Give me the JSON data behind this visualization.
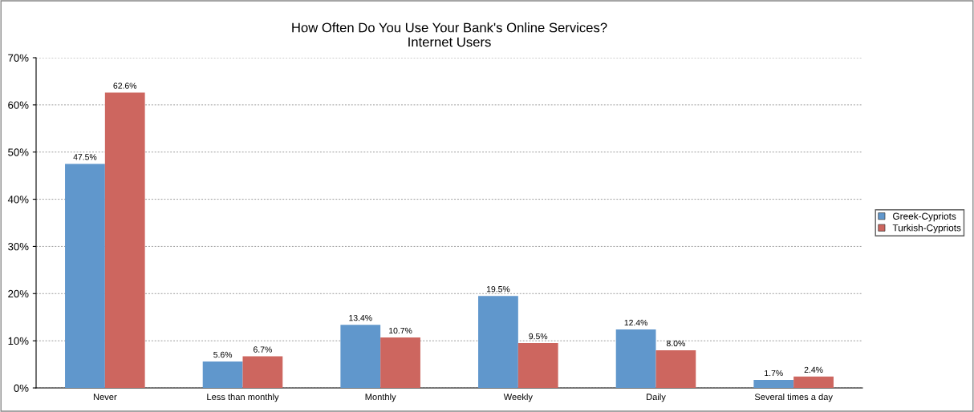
{
  "chart_data": {
    "type": "bar",
    "title": "How Often Do You Use Your Bank's Online Services?\nInternet Users",
    "categories": [
      "Never",
      "Less than monthly",
      "Monthly",
      "Weekly",
      "Daily",
      "Several times a day"
    ],
    "series": [
      {
        "name": "Greek-Cypriots",
        "color": "#6097cc",
        "values": [
          47.5,
          5.6,
          13.4,
          19.5,
          12.4,
          1.7
        ],
        "value_labels": [
          "47.5%",
          "5.6%",
          "13.4%",
          "19.5%",
          "12.4%",
          "1.7%"
        ]
      },
      {
        "name": "Turkish-Cypriots",
        "color": "#cd665f",
        "values": [
          62.6,
          6.7,
          10.7,
          9.5,
          8.0,
          2.4
        ],
        "value_labels": [
          "62.6%",
          "6.7%",
          "10.7%",
          "9.5%",
          "8.0%",
          "2.4%"
        ]
      }
    ],
    "ylim": [
      0,
      70
    ],
    "yticks": [
      {
        "value": 0,
        "label": "0%"
      },
      {
        "value": 10,
        "label": "10%"
      },
      {
        "value": 20,
        "label": "20%"
      },
      {
        "value": 30,
        "label": "30%"
      },
      {
        "value": 40,
        "label": "40%"
      },
      {
        "value": 50,
        "label": "50%"
      },
      {
        "value": 60,
        "label": "60%"
      },
      {
        "value": 70,
        "label": "70%"
      }
    ],
    "grid": "y",
    "legend": "right"
  }
}
